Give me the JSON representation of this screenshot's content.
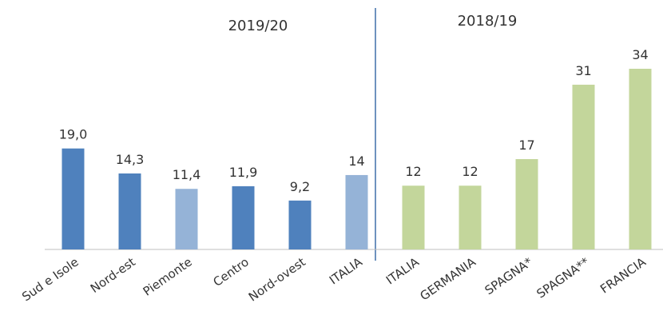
{
  "chart_data": {
    "type": "bar",
    "categories": [
      "Sud e Isole",
      "Nord-est",
      "Piemonte",
      "Centro",
      "Nord-ovest",
      "ITALIA",
      "ITALIA",
      "GERMANIA",
      "SPAGNA*",
      "SPAGNA**",
      "FRANCIA"
    ],
    "values": [
      19.0,
      14.3,
      11.4,
      11.9,
      9.2,
      14,
      12,
      12,
      17,
      31,
      34
    ],
    "value_labels": [
      "19,0",
      "14,3",
      "11,4",
      "11,9",
      "9,2",
      "14",
      "12",
      "12",
      "17",
      "31",
      "34"
    ],
    "colors": [
      "#4f81bd",
      "#4f81bd",
      "#95b3d7",
      "#4f81bd",
      "#4f81bd",
      "#95b3d7",
      "#c3d69b",
      "#c3d69b",
      "#c3d69b",
      "#c3d69b",
      "#c3d69b"
    ],
    "ylim": [
      0,
      34
    ],
    "annotations": [
      "2019/20",
      "2018/19"
    ]
  }
}
